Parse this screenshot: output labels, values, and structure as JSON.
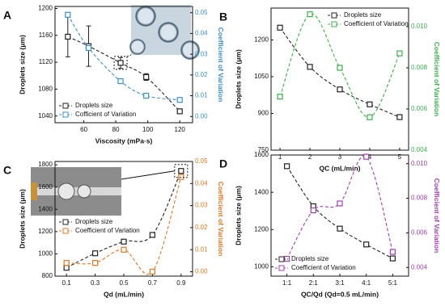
{
  "chart_data": [
    {
      "type": "line",
      "panel": "A",
      "xlabel": "Viscosity (mPa·s)",
      "ylabel": "Droplets size (μm)",
      "y2label": "Coefficient of Variation",
      "x": [
        50,
        63,
        83,
        99,
        120
      ],
      "xlim": [
        42,
        128
      ],
      "xticks": [
        60,
        80,
        100,
        120
      ],
      "ylim": [
        1030,
        1203
      ],
      "yticks": [
        1040,
        1080,
        1120,
        1160,
        1200
      ],
      "y2lim": [
        -0.003,
        0.053
      ],
      "y2ticks": [
        {
          "value": 0,
          "label": "0.00"
        },
        {
          "value": 0.01,
          "label": "0.01"
        },
        {
          "value": 0.02,
          "label": "0.02"
        },
        {
          "value": 0.03,
          "label": "0.03"
        },
        {
          "value": 0.04,
          "label": "0.04"
        },
        {
          "value": 0.05,
          "label": "0.05"
        }
      ],
      "legend": "lower left",
      "series": [
        {
          "name": "Droplets size",
          "color": "#222222",
          "values": [
            1158,
            1144,
            1119,
            1098,
            1047
          ],
          "errors": [
            30,
            30,
            8,
            5,
            3
          ]
        },
        {
          "name": "Cofficient of Variation",
          "color": "#3a8fd0",
          "axis": "y2",
          "values": [
            0.049,
            0.033,
            0.017,
            0.01,
            0.008
          ]
        }
      ]
    },
    {
      "type": "line",
      "panel": "B",
      "xlabel": "QC (mL/min)",
      "ylabel": "Droplets size (μm)",
      "y2label": "Coefficient of Variation",
      "x": [
        1,
        2,
        3,
        4,
        5
      ],
      "xlim": [
        0.7,
        5.3
      ],
      "xticks": [
        1,
        2,
        3,
        4,
        5
      ],
      "ylim": [
        750,
        1330
      ],
      "yticks": [
        750,
        900,
        1050,
        1200
      ],
      "y2lim": [
        0.004,
        0.0109
      ],
      "y2ticks": [
        0.004,
        0.006,
        0.008,
        {
          "value": 0.01,
          "label": "0.010"
        }
      ],
      "legend": "upper right",
      "series": [
        {
          "name": "Droplets size",
          "color": "#222222",
          "values": [
            1250,
            1090,
            998,
            937,
            885
          ]
        },
        {
          "name": "Coefficient of Variation",
          "color": "#3bb24a",
          "axis": "y2",
          "values": [
            0.0066,
            0.0106,
            0.008,
            0.0056,
            0.0087
          ]
        }
      ]
    },
    {
      "type": "line",
      "panel": "C",
      "xlabel": "Qd (mL/min)",
      "ylabel": "Droplets size (μm)",
      "y2label": "Coefficient of Variation",
      "x": [
        0.1,
        0.3,
        0.5,
        0.7,
        0.9
      ],
      "xlim": [
        0.02,
        0.98
      ],
      "xticks": [
        0.1,
        0.3,
        0.5,
        0.7,
        0.9
      ],
      "ylim": [
        800,
        1830
      ],
      "yticks": [
        800,
        1000,
        1200,
        1400,
        1600,
        1800
      ],
      "y2lim": [
        -0.002,
        0.05
      ],
      "y2ticks": [
        {
          "value": 0,
          "label": "0.00"
        },
        {
          "value": 0.01,
          "label": "0.01"
        },
        {
          "value": 0.02,
          "label": "0.02"
        },
        {
          "value": 0.03,
          "label": "0.03"
        },
        {
          "value": 0.04,
          "label": "0.04"
        },
        {
          "value": 0.05,
          "label": "0.05"
        }
      ],
      "legend": "center left",
      "series": [
        {
          "name": "Droplets size",
          "color": "#222222",
          "values": [
            875,
            1005,
            1110,
            1170,
            1745
          ]
        },
        {
          "name": "Coefficient of Variation",
          "color": "#e87722",
          "axis": "y2",
          "values": [
            0.004,
            0.004,
            0.01,
            0,
            0.043
          ]
        }
      ]
    },
    {
      "type": "line",
      "panel": "D",
      "xlabel": "QC/Qd (Qd=0.5 mL/min)",
      "ylabel": "Droplets size (μm)",
      "y2label": "Coefficient of Variation",
      "categories": [
        "1:1",
        "2:1",
        "3:1",
        "4:1",
        "5:1"
      ],
      "ylim": [
        950,
        1600
      ],
      "yticks": [
        1000,
        1200,
        1400,
        1600
      ],
      "y2lim": [
        0.0035,
        0.0105
      ],
      "y2ticks": [
        0.004,
        0.006,
        0.008,
        {
          "value": 0.01,
          "label": "0.010"
        }
      ],
      "legend": "lower left",
      "series": [
        {
          "name": "Droplets size",
          "color": "#222222",
          "values": [
            1540,
            1325,
            1205,
            1120,
            1045
          ]
        },
        {
          "name": "Coefficient of Variation",
          "color": "#a040b0",
          "axis": "y2",
          "values": [
            0.0045,
            0.0073,
            0.0077,
            0.0104,
            0.0049
          ]
        }
      ]
    }
  ]
}
